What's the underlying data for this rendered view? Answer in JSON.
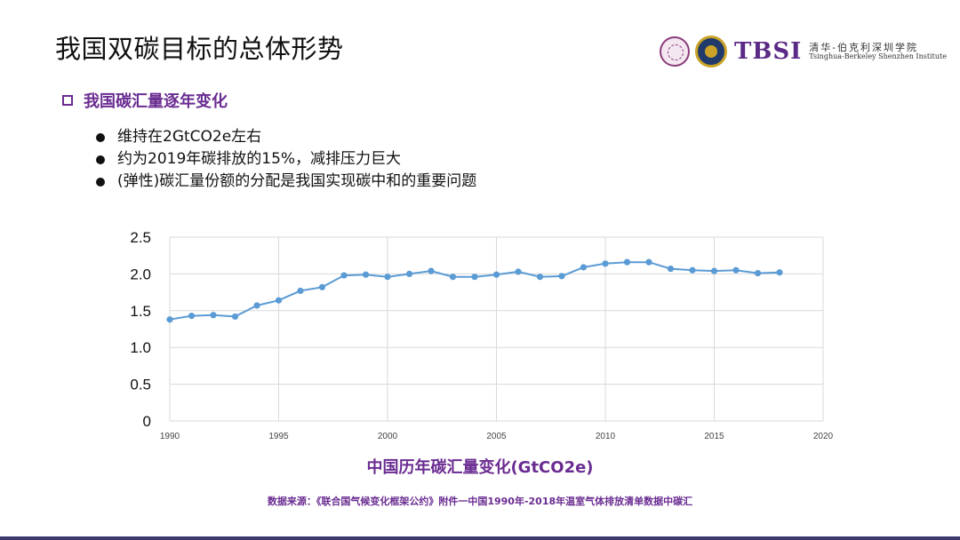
{
  "slide": {
    "title": "我国双碳目标的总体形势",
    "subheading": "我国碳汇量逐年变化",
    "bullets": [
      "维持在2GtCO2e左右",
      "约为2019年碳排放的15%，减排压力巨大",
      "(弹性)碳汇量份额的分配是我国实现碳中和的重要问题"
    ],
    "source_note": "数据来源：《联合国气候变化框架公约》附件一中国1990年-2018年温室气体排放清单数据中碳汇"
  },
  "logo": {
    "acronym": "TBSI",
    "name_cn": "清华-伯克利深圳学院",
    "name_en": "Tsinghua-Berkeley Shenzhen Institute"
  },
  "colors": {
    "accent": "#6a2c91",
    "series": "#5b9bd5",
    "grid": "#d9d9d9",
    "bottom_bar": "#3f3a6e"
  },
  "chart_data": {
    "type": "line",
    "title": "中国历年碳汇量变化(GtCO2e)",
    "x": [
      1990,
      1991,
      1992,
      1993,
      1994,
      1995,
      1996,
      1997,
      1998,
      1999,
      2000,
      2001,
      2002,
      2003,
      2004,
      2005,
      2006,
      2007,
      2008,
      2009,
      2010,
      2011,
      2012,
      2013,
      2014,
      2015,
      2016,
      2017,
      2018
    ],
    "series": [
      {
        "values": [
          1.38,
          1.43,
          1.44,
          1.42,
          1.57,
          1.64,
          1.77,
          1.82,
          1.98,
          1.99,
          1.96,
          2.0,
          2.04,
          1.96,
          1.96,
          1.99,
          2.03,
          1.96,
          1.97,
          2.09,
          2.14,
          2.16,
          2.16,
          2.07,
          2.05,
          2.04,
          2.05,
          2.01,
          2.02
        ]
      }
    ],
    "xlim": [
      1990,
      2020
    ],
    "ylim": [
      0,
      2.5
    ],
    "xticks": [
      "1990",
      "1995",
      "2000",
      "2005",
      "2010",
      "2015",
      "2020"
    ],
    "yticks": [
      "0",
      "0.5",
      "1.0",
      "1.5",
      "2.0",
      "2.5"
    ],
    "grid": true
  }
}
